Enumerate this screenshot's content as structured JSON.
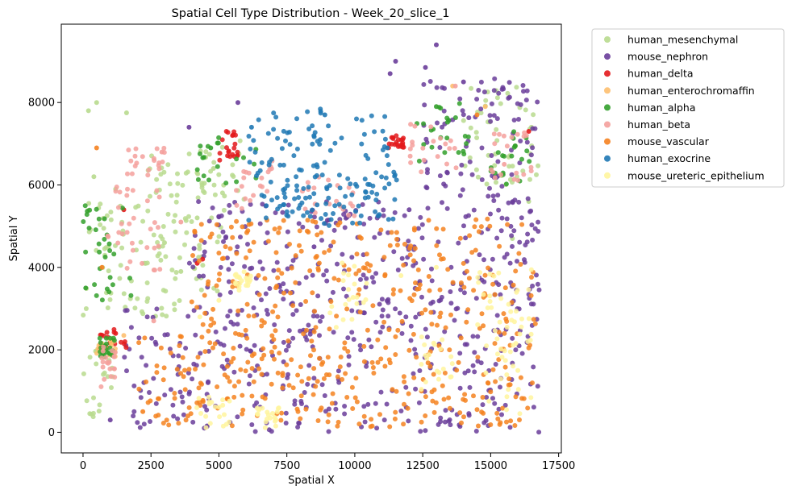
{
  "chart_data": {
    "type": "scatter",
    "title": "Spatial Cell Type Distribution - Week_20_slice_1",
    "xlabel": "Spatial X",
    "ylabel": "Spatial Y",
    "xlim": [
      -800,
      17600
    ],
    "ylim": [
      -500,
      9900
    ],
    "xticks": [
      0,
      2500,
      5000,
      7500,
      10000,
      12500,
      15000,
      17500
    ],
    "yticks": [
      0,
      2000,
      4000,
      6000,
      8000
    ],
    "grid": false,
    "legend_position": "outside-top-right",
    "series": [
      {
        "name": "human_mesenchymal",
        "color": "#b8da8e",
        "regions": [
          [
            0,
            2400,
            2600,
            5600
          ],
          [
            0,
            1200,
            100,
            2000
          ],
          [
            2300,
            5200,
            2800,
            6800
          ],
          [
            14000,
            16800,
            6000,
            8400
          ],
          [
            4200,
            6000,
            5600,
            7200
          ]
        ],
        "values": [
          [
            200,
            7800
          ],
          [
            500,
            8000
          ],
          [
            1600,
            7750
          ],
          [
            400,
            6200
          ],
          [
            1200,
            5900
          ],
          [
            3000,
            4600
          ],
          [
            3600,
            3900
          ],
          [
            4200,
            5200
          ],
          [
            4800,
            6400
          ],
          [
            15800,
            4700
          ],
          [
            16400,
            5600
          ],
          [
            16500,
            7400
          ]
        ]
      },
      {
        "name": "mouse_nephron",
        "color": "#6a3d9a",
        "regions": [
          [
            3800,
            16800,
            0,
            5600
          ],
          [
            1500,
            3800,
            100,
            3000
          ],
          [
            12500,
            16800,
            5500,
            8600
          ]
        ],
        "values": [
          [
            5700,
            8000
          ],
          [
            3900,
            7400
          ],
          [
            13000,
            9400
          ],
          [
            11300,
            8700
          ],
          [
            11500,
            9000
          ],
          [
            12600,
            8850
          ],
          [
            14000,
            8500
          ],
          [
            1000,
            300
          ],
          [
            12000,
            5400
          ],
          [
            8500,
            4500
          ]
        ]
      },
      {
        "name": "human_delta",
        "color": "#e31a1c",
        "regions": [
          [
            600,
            1600,
            2000,
            2500
          ],
          [
            5000,
            5800,
            6600,
            7300
          ],
          [
            11200,
            11800,
            6900,
            7200
          ]
        ],
        "values": [
          [
            1200,
            2400
          ],
          [
            5500,
            7200
          ],
          [
            11400,
            7150
          ],
          [
            1500,
            5400
          ],
          [
            4400,
            4200
          ],
          [
            16400,
            7300
          ],
          [
            4200,
            4100
          ]
        ]
      },
      {
        "name": "human_enterochromaffin",
        "color": "#fdbf6f",
        "regions": [
          [
            500,
            1200,
            1800,
            2300
          ]
        ],
        "values": [
          [
            1500,
            2350
          ],
          [
            13600,
            8400
          ],
          [
            14800,
            7900
          ]
        ]
      },
      {
        "name": "human_alpha",
        "color": "#33a02c",
        "regions": [
          [
            0,
            1800,
            3200,
            5500
          ],
          [
            600,
            1300,
            1800,
            2300
          ],
          [
            4200,
            6400,
            6000,
            7200
          ],
          [
            12200,
            14200,
            6400,
            8000
          ],
          [
            15000,
            16500,
            6000,
            7300
          ]
        ],
        "values": [
          [
            100,
            3500
          ],
          [
            800,
            2100
          ],
          [
            13000,
            7900
          ],
          [
            4700,
            6900
          ]
        ]
      },
      {
        "name": "human_beta",
        "color": "#f4a09c",
        "regions": [
          [
            900,
            3000,
            3800,
            6000
          ],
          [
            1500,
            3100,
            6200,
            6900
          ],
          [
            600,
            1200,
            1100,
            2200
          ],
          [
            5300,
            7000,
            5400,
            6600
          ],
          [
            8000,
            10000,
            5200,
            6200
          ],
          [
            12000,
            13800,
            6300,
            7600
          ],
          [
            15000,
            16600,
            6100,
            7300
          ]
        ],
        "values": [
          [
            2900,
            6800
          ],
          [
            2600,
            2700
          ],
          [
            13700,
            8400
          ],
          [
            15500,
            6500
          ],
          [
            3600,
            5100
          ]
        ]
      },
      {
        "name": "mouse_vascular",
        "color": "#f58220",
        "regions": [
          [
            4000,
            16700,
            100,
            5200
          ],
          [
            1800,
            4000,
            100,
            2400
          ]
        ],
        "values": [
          [
            500,
            6900
          ],
          [
            14500,
            7700
          ],
          [
            700,
            4000
          ],
          [
            2200,
            500
          ]
        ]
      },
      {
        "name": "human_exocrine",
        "color": "#1f78b4",
        "regions": [
          [
            6000,
            11600,
            5100,
            7700
          ],
          [
            7000,
            9500,
            6800,
            7900
          ],
          [
            6500,
            11000,
            5000,
            6200
          ]
        ],
        "values": [
          [
            6200,
            7400
          ],
          [
            8900,
            7700
          ],
          [
            11200,
            6900
          ]
        ]
      },
      {
        "name": "mouse_ureteric_epithelium",
        "color": "#fff59d",
        "regions": [
          [
            4000,
            5500,
            100,
            900
          ],
          [
            9000,
            10500,
            2500,
            4200
          ],
          [
            14500,
            16500,
            300,
            4000
          ],
          [
            12400,
            13600,
            1000,
            2500
          ],
          [
            5600,
            6200,
            3400,
            3900
          ],
          [
            6200,
            7400,
            100,
            600
          ]
        ],
        "values": [
          [
            4300,
            2800
          ],
          [
            5000,
            3200
          ],
          [
            11700,
            3800
          ],
          [
            13000,
            4000
          ],
          [
            16000,
            1500
          ]
        ]
      }
    ]
  }
}
